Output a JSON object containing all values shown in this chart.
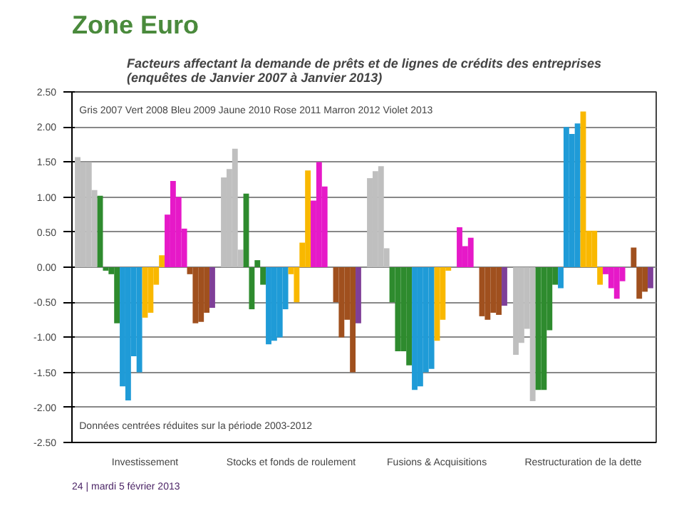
{
  "chart_data": {
    "type": "bar",
    "title": "Zone Euro",
    "subtitle": "Facteurs affectant la demande de prêts et de lignes de crédits des entreprises (enquêtes de Janvier 2007 à Janvier 2013)",
    "categories": [
      "Investissement",
      "Stocks et fonds de roulement",
      "Fusions & Acquisitions",
      "Restructuration de la dette"
    ],
    "series": [
      {
        "color": "#bfbfbf",
        "values": [
          1.57,
          1.28,
          1.27,
          -1.25
        ]
      },
      {
        "color": "#bfbfbf",
        "values": [
          1.5,
          1.4,
          1.37,
          -1.08
        ]
      },
      {
        "color": "#bfbfbf",
        "values": [
          1.5,
          1.69,
          1.44,
          -0.88
        ]
      },
      {
        "color": "#bfbfbf",
        "values": [
          1.1,
          0.25,
          0.27,
          -1.91
        ]
      },
      {
        "color": "#2e8b2e",
        "values": [
          1.02,
          1.05,
          -0.5,
          -1.75
        ]
      },
      {
        "color": "#2e8b2e",
        "values": [
          -0.05,
          -0.6,
          -1.2,
          -1.75
        ]
      },
      {
        "color": "#2e8b2e",
        "values": [
          -0.1,
          0.1,
          -1.2,
          -0.9
        ]
      },
      {
        "color": "#2e8b2e",
        "values": [
          -0.8,
          -0.25,
          -1.4,
          -0.25
        ]
      },
      {
        "color": "#1f9bd7",
        "values": [
          -1.7,
          -1.1,
          -1.75,
          -0.3
        ]
      },
      {
        "color": "#1f9bd7",
        "values": [
          -1.9,
          -1.05,
          -1.7,
          2.0
        ]
      },
      {
        "color": "#1f9bd7",
        "values": [
          -1.27,
          -1.0,
          -1.5,
          1.9
        ]
      },
      {
        "color": "#1f9bd7",
        "values": [
          -1.5,
          -0.6,
          -1.45,
          2.05
        ]
      },
      {
        "color": "#f9b800",
        "values": [
          -0.72,
          -0.1,
          -1.05,
          2.22
        ]
      },
      {
        "color": "#f9b800",
        "values": [
          -0.65,
          -0.5,
          -0.75,
          0.52
        ]
      },
      {
        "color": "#f9b800",
        "values": [
          -0.25,
          0.35,
          -0.05,
          0.52
        ]
      },
      {
        "color": "#f9b800",
        "values": [
          0.17,
          1.38,
          0.0,
          -0.25
        ]
      },
      {
        "color": "#e619c8",
        "values": [
          0.75,
          0.95,
          0.57,
          -0.1
        ]
      },
      {
        "color": "#e619c8",
        "values": [
          1.23,
          1.5,
          0.3,
          -0.3
        ]
      },
      {
        "color": "#e619c8",
        "values": [
          1.0,
          1.15,
          0.42,
          -0.45
        ]
      },
      {
        "color": "#e619c8",
        "values": [
          0.55,
          0.0,
          0.0,
          -0.2
        ]
      },
      {
        "color": "#a0501e",
        "values": [
          -0.1,
          -0.5,
          -0.7,
          0.0
        ]
      },
      {
        "color": "#a0501e",
        "values": [
          -0.8,
          -1.0,
          -0.75,
          0.28
        ]
      },
      {
        "color": "#a0501e",
        "values": [
          -0.78,
          -0.75,
          -0.65,
          -0.45
        ]
      },
      {
        "color": "#a0501e",
        "values": [
          -0.65,
          -1.5,
          -0.68,
          -0.35
        ]
      },
      {
        "color": "#7f3f98",
        "values": [
          -0.58,
          -0.8,
          -0.55,
          -0.3
        ]
      }
    ],
    "ylim": [
      -2.5,
      2.5
    ],
    "yticks": [
      {
        "value": -2.5,
        "label": "-2.50"
      },
      {
        "value": -2,
        "label": "-2.00"
      },
      {
        "value": -1.5,
        "label": "-1.50"
      },
      {
        "value": -1,
        "label": "-1.00"
      },
      {
        "value": -0.5,
        "label": "-0.50"
      },
      {
        "value": 0,
        "label": "0.00"
      },
      {
        "value": 0.5,
        "label": "0.50"
      },
      {
        "value": 1,
        "label": "1.00"
      },
      {
        "value": 1.5,
        "label": "1.50"
      },
      {
        "value": 2,
        "label": "2.00"
      },
      {
        "value": 2.5,
        "label": "2.50"
      }
    ],
    "grid": "y",
    "annotations": [
      "Gris 2007 Vert 2008 Bleu 2009 Jaune 2010 Rose 2011 Marron 2012 Violet 2013",
      "Données centrées réduites sur la période 2003-2012",
      "24 | mardi 5 février 2013"
    ]
  }
}
